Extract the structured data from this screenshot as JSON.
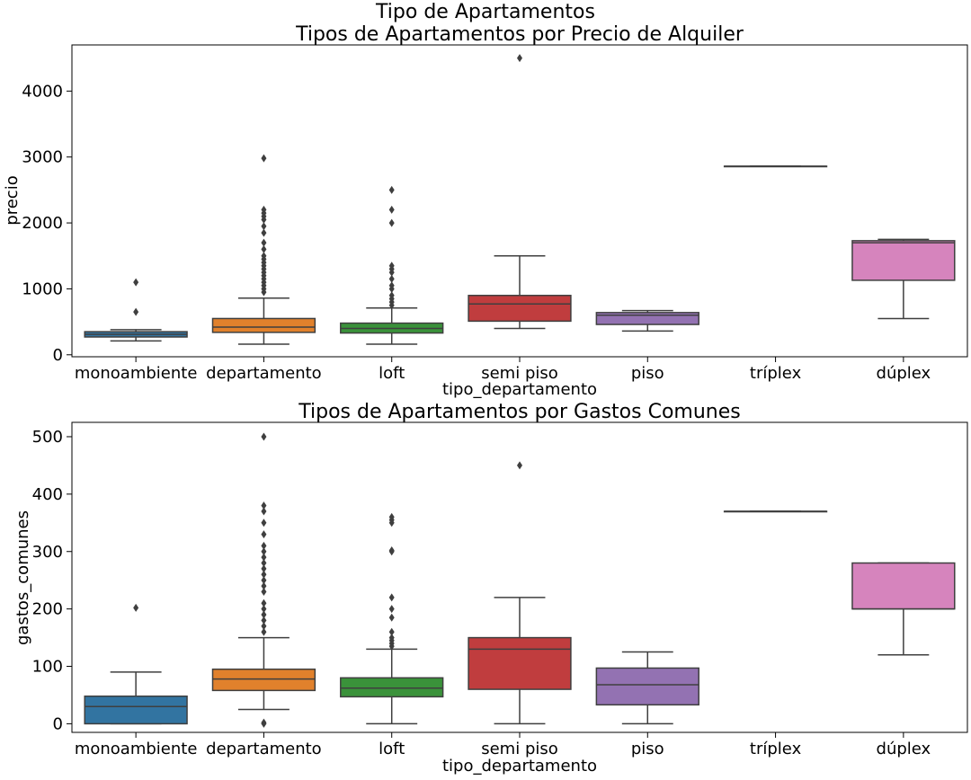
{
  "figure": {
    "suptitle": "Tipo de Apartamentos"
  },
  "chart_data": [
    {
      "type": "box",
      "title": "Tipos de Apartamentos por Precio de Alquiler",
      "xlabel": "tipo_departamento",
      "ylabel": "precio",
      "categories": [
        "monoambiente",
        "departamento",
        "loft",
        "semi piso",
        "piso",
        "tríplex",
        "dúplex"
      ],
      "ylim": [
        -30,
        4700
      ],
      "yticks": [
        0,
        1000,
        2000,
        3000,
        4000
      ],
      "grid": false,
      "boxes": [
        {
          "category": "monoambiente",
          "color": "#3274a1",
          "whislo": 210,
          "q1": 270,
          "med": 310,
          "q3": 350,
          "whishi": 380,
          "fliers": [
            650,
            1100
          ]
        },
        {
          "category": "departamento",
          "color": "#e1812c",
          "whislo": 160,
          "q1": 340,
          "med": 420,
          "q3": 550,
          "whishi": 860,
          "fliers": [
            950,
            1000,
            1050,
            1100,
            1150,
            1200,
            1250,
            1300,
            1350,
            1400,
            1450,
            1500,
            1600,
            1700,
            1850,
            1950,
            2050,
            2100,
            2150,
            2200,
            2980
          ]
        },
        {
          "category": "loft",
          "color": "#3a923a",
          "whislo": 160,
          "q1": 330,
          "med": 400,
          "q3": 480,
          "whishi": 710,
          "fliers": [
            750,
            800,
            850,
            900,
            1000,
            1050,
            1150,
            1250,
            1300,
            1350,
            2000,
            2200,
            2500
          ]
        },
        {
          "category": "semi piso",
          "color": "#c03d3e",
          "whislo": 400,
          "q1": 510,
          "med": 770,
          "q3": 900,
          "whishi": 1500,
          "fliers": [
            4500
          ]
        },
        {
          "category": "piso",
          "color": "#9372b2",
          "whislo": 360,
          "q1": 460,
          "med": 600,
          "q3": 640,
          "whishi": 670,
          "fliers": []
        },
        {
          "category": "tríplex",
          "color": "#845b53",
          "whislo": 2860,
          "q1": 2860,
          "med": 2860,
          "q3": 2860,
          "whishi": 2860,
          "fliers": []
        },
        {
          "category": "dúplex",
          "color": "#d684bd",
          "whislo": 550,
          "q1": 1130,
          "med": 1700,
          "q3": 1730,
          "whishi": 1750,
          "fliers": []
        }
      ]
    },
    {
      "type": "box",
      "title": "Tipos de Apartamentos por Gastos Comunes",
      "xlabel": "tipo_departamento",
      "ylabel": "gastos_comunes",
      "categories": [
        "monoambiente",
        "departamento",
        "loft",
        "semi piso",
        "piso",
        "tríplex",
        "dúplex"
      ],
      "ylim": [
        -15,
        525
      ],
      "yticks": [
        0,
        100,
        200,
        300,
        400,
        500
      ],
      "grid": false,
      "boxes": [
        {
          "category": "monoambiente",
          "color": "#3274a1",
          "whislo": 0,
          "q1": 0,
          "med": 30,
          "q3": 48,
          "whishi": 90,
          "fliers": [
            202
          ]
        },
        {
          "category": "departamento",
          "color": "#e1812c",
          "whislo": 25,
          "q1": 58,
          "med": 78,
          "q3": 95,
          "whishi": 150,
          "fliers": [
            0,
            2,
            160,
            170,
            180,
            190,
            200,
            210,
            230,
            240,
            250,
            260,
            270,
            280,
            290,
            300,
            310,
            330,
            350,
            370,
            380,
            500
          ]
        },
        {
          "category": "loft",
          "color": "#3a923a",
          "whislo": 0,
          "q1": 47,
          "med": 62,
          "q3": 80,
          "whishi": 130,
          "fliers": [
            135,
            140,
            145,
            150,
            160,
            185,
            200,
            220,
            300,
            302,
            350,
            355,
            360
          ]
        },
        {
          "category": "semi piso",
          "color": "#c03d3e",
          "whislo": 0,
          "q1": 60,
          "med": 130,
          "q3": 150,
          "whishi": 220,
          "fliers": [
            450
          ]
        },
        {
          "category": "piso",
          "color": "#9372b2",
          "whislo": 0,
          "q1": 33,
          "med": 68,
          "q3": 97,
          "whishi": 125,
          "fliers": []
        },
        {
          "category": "tríplex",
          "color": "#845b53",
          "whislo": 370,
          "q1": 370,
          "med": 370,
          "q3": 370,
          "whishi": 370,
          "fliers": []
        },
        {
          "category": "dúplex",
          "color": "#d684bd",
          "whislo": 120,
          "q1": 200,
          "med": 200,
          "q3": 280,
          "whishi": 280,
          "fliers": []
        }
      ]
    }
  ]
}
